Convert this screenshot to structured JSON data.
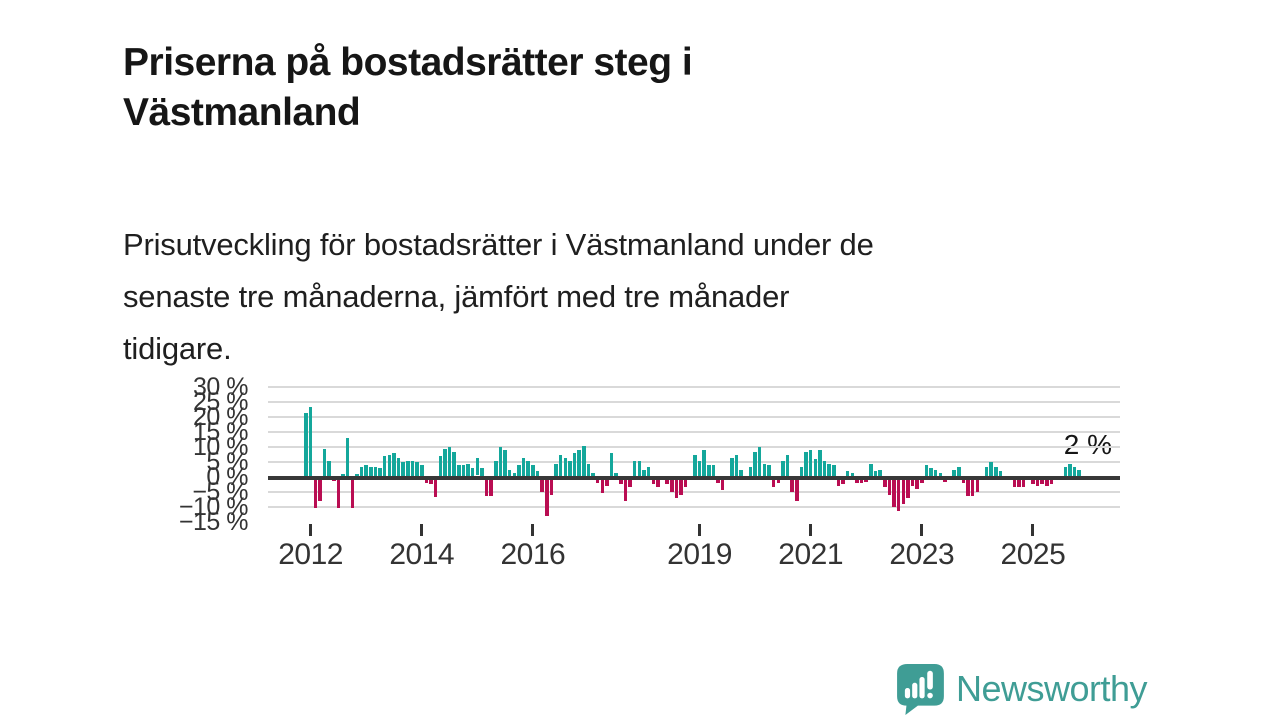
{
  "title": "Priserna på bostadsrätter steg i Västmanland",
  "title_lines": [
    "Priserna på bostadsrätter steg i",
    "Västmanland"
  ],
  "subtitle": "Prisutveckling för bostadsrätter i Västmanland under de senaste tre månaderna, jämfört med tre månader tidigare.",
  "subtitle_lines": [
    "Prisutveckling för bostadsrätter i Västmanland under de",
    "senaste tre månaderna, jämfört med tre månader",
    "tidigare."
  ],
  "annotation_label": "2 %",
  "brand": {
    "name": "Newsworthy",
    "icon": "bar-chart-speech-bubble-icon",
    "color": "#3f9d95"
  },
  "colors": {
    "positive_bar": "#14a79b",
    "negative_bar": "#b90d52",
    "baseline": "#383838",
    "gridline": "#d9d9d9",
    "axis_text": "#333333",
    "title_text": "#161616"
  },
  "chart_data": {
    "type": "bar",
    "unit": "%",
    "title": "Priserna på bostadsrätter steg i Västmanland",
    "xlabel": "",
    "ylabel": "",
    "grid": true,
    "legend": false,
    "ylim": [
      -17,
      32
    ],
    "y_ticks": [
      30,
      25,
      20,
      15,
      10,
      5,
      0,
      -5,
      -10,
      -15
    ],
    "y_tick_labels": [
      "30 %",
      "25 %",
      "20 %",
      "15 %",
      "10 %",
      "5 %",
      "0 %",
      "−5 %",
      "−10 %",
      "−15 %"
    ],
    "x_tick_labels": [
      "2012",
      "2014",
      "2016",
      "2019",
      "2021",
      "2023",
      "2025"
    ],
    "x_tick_indices": [
      1,
      25,
      49,
      85,
      109,
      133,
      157
    ],
    "latest_value_label": "2 %",
    "latest_value": 2,
    "values": [
      21,
      23,
      -9.5,
      -7,
      9,
      5,
      -0.5,
      -9.5,
      0.5,
      12.5,
      -9.5,
      0.5,
      3,
      3.5,
      3,
      3,
      2.5,
      6.5,
      7,
      7.5,
      6,
      4.5,
      5,
      5,
      4.5,
      3.5,
      -1,
      -1.5,
      -5.7,
      6.5,
      9,
      9.5,
      8,
      3.5,
      3.5,
      4,
      2.5,
      5.8,
      2.5,
      -5.5,
      -5.5,
      5,
      9.5,
      8.5,
      2,
      1,
      3.5,
      6,
      5,
      3.5,
      1.5,
      -4,
      -12,
      -5,
      4,
      7,
      6,
      5,
      7.5,
      8.5,
      10,
      4,
      1,
      -1,
      -4.5,
      -2,
      7.5,
      1,
      -1.5,
      -7,
      -2.5,
      5,
      5,
      2,
      3,
      -1.5,
      -2.5,
      0,
      -1.5,
      -4,
      -6,
      -5,
      -2.5,
      0,
      7,
      5,
      8.5,
      3.5,
      3.5,
      -1,
      -3.5,
      0,
      6,
      7,
      2,
      0,
      3,
      8,
      9.5,
      4,
      3.5,
      -2.5,
      -1,
      5,
      7,
      -4,
      -7,
      3,
      8,
      8.5,
      5.5,
      8.5,
      5,
      4,
      3.5,
      -2,
      -1.5,
      1.5,
      1,
      -1,
      -1,
      -0.8,
      4,
      1.5,
      2,
      -2.5,
      -5,
      -9,
      -10.5,
      -8,
      -6,
      -2,
      -3,
      -1,
      3.5,
      2.5,
      2,
      1,
      -0.8,
      0,
      2,
      3,
      -1,
      -5.5,
      -5.5,
      -4,
      0,
      3,
      4.5,
      3,
      1.5,
      0,
      0,
      -2.5,
      -2.5,
      -2.5,
      0,
      -1.5,
      -2,
      -1.4,
      -2.3,
      -1.5,
      0,
      0,
      3,
      4,
      3,
      2
    ]
  }
}
